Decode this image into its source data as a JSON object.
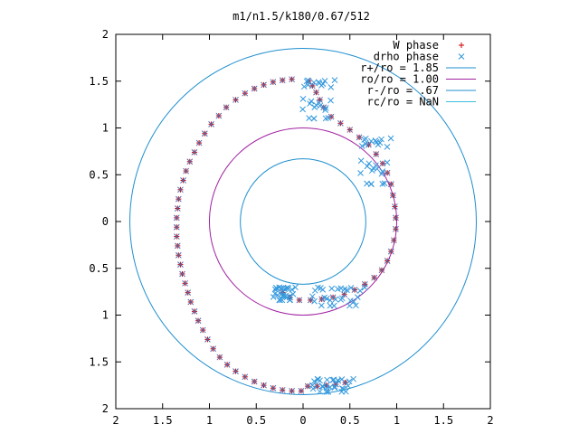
{
  "chart_data": {
    "type": "scatter",
    "title": "m1/n1.5/k180/0.67/512",
    "xlim": [
      -2,
      2
    ],
    "ylim": [
      -2,
      2
    ],
    "x_ticks": [
      -2,
      -1.5,
      -1,
      -0.5,
      0,
      0.5,
      1,
      1.5,
      2
    ],
    "y_ticks": [
      -2,
      -1.5,
      -1,
      -0.5,
      0,
      0.5,
      1,
      1.5,
      2
    ],
    "x_tick_labels": [
      "2",
      "1.5",
      "1",
      "0.5",
      "0",
      "0.5",
      "1",
      "1.5",
      "2"
    ],
    "y_tick_labels": [
      "2",
      "1.5",
      "1",
      "0.5",
      "0",
      "0.5",
      "1",
      "1.5",
      "2"
    ],
    "grid": false,
    "legend_position": "top-right",
    "legend": [
      {
        "label": "W phase",
        "style": "plus",
        "color": "#cc0000"
      },
      {
        "label": "drho phase",
        "style": "cross",
        "color": "#3399dd"
      },
      {
        "label": "r+/ro = 1.85",
        "style": "line",
        "color": "#1f8fcf"
      },
      {
        "label": "ro/ro = 1.00",
        "style": "line",
        "color": "#a020a0"
      },
      {
        "label": "r-/ro = .67",
        "style": "line",
        "color": "#1f8fcf"
      },
      {
        "label": "rc/ro = NaN",
        "style": "line",
        "color": "#40c0e0"
      }
    ],
    "circles": [
      {
        "name": "r+/ro = 1.85",
        "r": 1.85,
        "color": "#1f8fcf"
      },
      {
        "name": "ro/ro = 1.00",
        "r": 1.0,
        "color": "#a020a0"
      },
      {
        "name": "r-/ro = .67",
        "r": 0.67,
        "color": "#1f8fcf"
      }
    ],
    "spiral_points": [
      [
        -0.12,
        1.52
      ],
      [
        -0.22,
        1.51
      ],
      [
        -0.32,
        1.49
      ],
      [
        -0.42,
        1.46
      ],
      [
        -0.52,
        1.42
      ],
      [
        -0.62,
        1.37
      ],
      [
        -0.72,
        1.3
      ],
      [
        -0.82,
        1.22
      ],
      [
        -0.9,
        1.13
      ],
      [
        -0.98,
        1.04
      ],
      [
        -1.05,
        0.94
      ],
      [
        -1.11,
        0.84
      ],
      [
        -1.16,
        0.74
      ],
      [
        -1.21,
        0.64
      ],
      [
        -1.25,
        0.54
      ],
      [
        -1.28,
        0.44
      ],
      [
        -1.31,
        0.34
      ],
      [
        -1.33,
        0.24
      ],
      [
        -1.34,
        0.14
      ],
      [
        -1.35,
        0.04
      ],
      [
        -1.35,
        -0.06
      ],
      [
        -1.35,
        -0.16
      ],
      [
        -1.34,
        -0.26
      ],
      [
        -1.33,
        -0.36
      ],
      [
        -1.31,
        -0.46
      ],
      [
        -1.29,
        -0.56
      ],
      [
        -1.26,
        -0.66
      ],
      [
        -1.23,
        -0.76
      ],
      [
        -1.2,
        -0.86
      ],
      [
        -1.16,
        -0.96
      ],
      [
        -1.12,
        -1.06
      ],
      [
        -1.07,
        -1.16
      ],
      [
        -1.02,
        -1.26
      ],
      [
        -0.96,
        -1.36
      ],
      [
        -0.89,
        -1.45
      ],
      [
        -0.81,
        -1.53
      ],
      [
        -0.72,
        -1.6
      ],
      [
        -0.62,
        -1.66
      ],
      [
        -0.52,
        -1.71
      ],
      [
        -0.42,
        -1.75
      ],
      [
        -0.32,
        -1.78
      ],
      [
        -0.22,
        -1.8
      ],
      [
        -0.12,
        -1.81
      ],
      [
        -0.02,
        -1.81
      ],
      [
        0.06,
        1.5
      ],
      [
        0.1,
        1.45
      ],
      [
        0.14,
        1.38
      ],
      [
        0.18,
        1.3
      ],
      [
        0.22,
        1.22
      ],
      [
        0.3,
        1.12
      ],
      [
        0.4,
        1.05
      ],
      [
        0.5,
        0.98
      ],
      [
        0.6,
        0.9
      ],
      [
        0.7,
        0.82
      ],
      [
        0.78,
        0.72
      ],
      [
        0.85,
        0.62
      ],
      [
        0.9,
        0.52
      ],
      [
        0.94,
        0.4
      ],
      [
        0.96,
        0.28
      ],
      [
        0.98,
        0.16
      ],
      [
        0.99,
        0.04
      ],
      [
        0.99,
        -0.08
      ],
      [
        0.97,
        -0.2
      ],
      [
        0.94,
        -0.32
      ],
      [
        0.9,
        -0.42
      ],
      [
        0.84,
        -0.52
      ],
      [
        0.76,
        -0.6
      ],
      [
        0.66,
        -0.67
      ],
      [
        0.55,
        -0.73
      ],
      [
        0.44,
        -0.78
      ],
      [
        0.32,
        -0.81
      ],
      [
        0.2,
        -0.83
      ],
      [
        0.08,
        -0.84
      ],
      [
        -0.04,
        -0.84
      ],
      [
        -0.14,
        -0.81
      ],
      [
        -0.22,
        -0.76
      ],
      [
        0.05,
        -1.76
      ],
      [
        0.15,
        -1.76
      ],
      [
        0.25,
        -1.75
      ],
      [
        0.35,
        -1.74
      ],
      [
        0.45,
        -1.72
      ]
    ],
    "drho_clusters": [
      {
        "x": [
          0.0,
          0.3
        ],
        "y": [
          1.1,
          1.52
        ]
      },
      {
        "x": [
          0.62,
          0.9
        ],
        "y": [
          0.4,
          0.9
        ]
      },
      {
        "x": [
          0.1,
          0.62
        ],
        "y": [
          -0.9,
          -0.7
        ]
      },
      {
        "x": [
          -0.3,
          -0.12
        ],
        "y": [
          -0.84,
          -0.7
        ]
      },
      {
        "x": [
          0.1,
          0.5
        ],
        "y": [
          -1.82,
          -1.68
        ]
      }
    ]
  }
}
